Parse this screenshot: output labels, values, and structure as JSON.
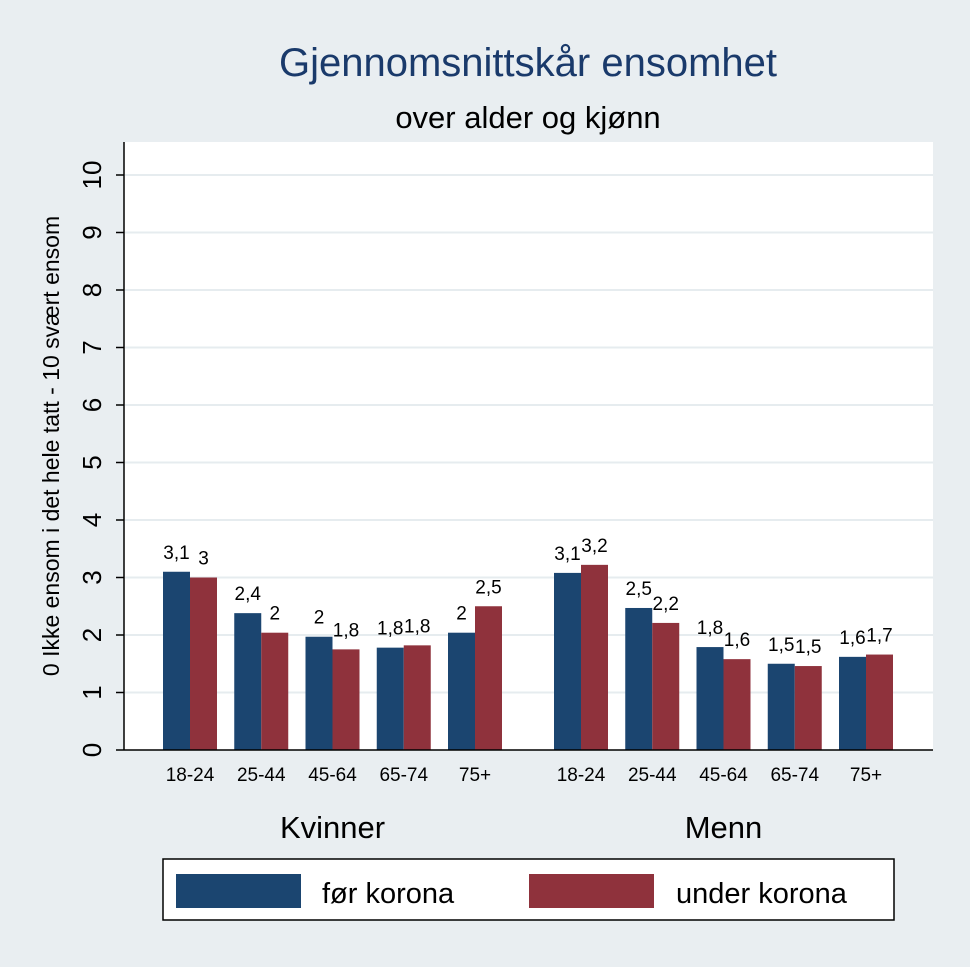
{
  "chart_data": {
    "type": "bar",
    "title": "Gjennomsnittskår ensomhet",
    "subtitle": "over alder og kjønn",
    "ylabel": "0 Ikke ensom i det hele tatt - 10 svært ensom",
    "ylim": [
      0,
      10
    ],
    "yticks": [
      0,
      1,
      2,
      3,
      4,
      5,
      6,
      7,
      8,
      9,
      10
    ],
    "grid": true,
    "legend_position": "bottom",
    "groups": [
      {
        "name": "Kvinner",
        "categories": [
          "18-24",
          "25-44",
          "45-64",
          "65-74",
          "75+"
        ],
        "series": [
          {
            "name": "før korona",
            "values": [
              3.1,
              2.38,
              1.97,
              1.78,
              2.04
            ],
            "labels": [
              "3,1",
              "2,4",
              "2",
              "1,8",
              "2"
            ]
          },
          {
            "name": "under korona",
            "values": [
              3.0,
              2.04,
              1.75,
              1.82,
              2.5
            ],
            "labels": [
              "3",
              "2",
              "1,8",
              "1,8",
              "2,5"
            ]
          }
        ]
      },
      {
        "name": "Menn",
        "categories": [
          "18-24",
          "25-44",
          "45-64",
          "65-74",
          "75+"
        ],
        "series": [
          {
            "name": "før korona",
            "values": [
              3.08,
              2.47,
              1.79,
              1.5,
              1.62
            ],
            "labels": [
              "3,1",
              "2,5",
              "1,8",
              "1,5",
              "1,6"
            ]
          },
          {
            "name": "under korona",
            "values": [
              3.22,
              2.21,
              1.58,
              1.46,
              1.66
            ],
            "labels": [
              "3,2",
              "2,2",
              "1,6",
              "1,5",
              "1,7"
            ]
          }
        ]
      }
    ]
  },
  "colors": {
    "before": "#1b4570",
    "during": "#8f323c",
    "title": "#1a3a6b",
    "background": "#e9eef1",
    "plot_area": "#ffffff",
    "grid": "#e6ecef"
  }
}
